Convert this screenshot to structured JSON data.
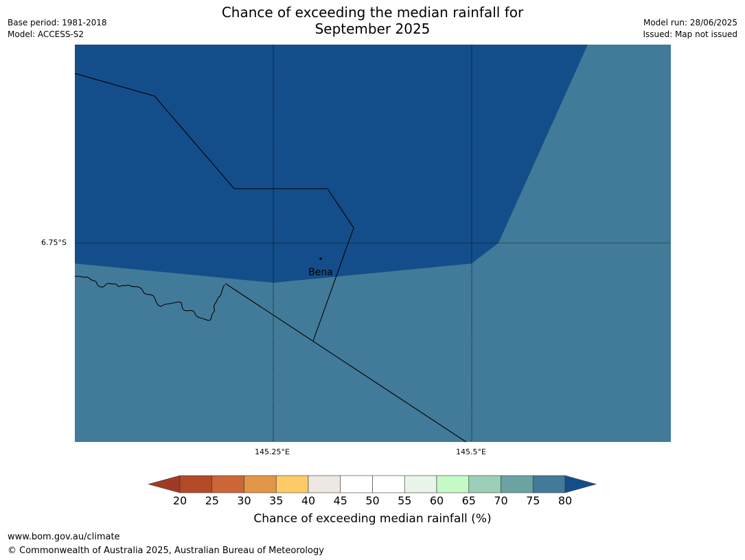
{
  "header": {
    "title_line1": "Chance of exceeding the median rainfall for",
    "title_line2": "September 2025",
    "base_period": "Base period: 1981-2018",
    "model": "Model: ACCESS-S2",
    "model_run": "Model run: 28/06/2025",
    "issued": "Issued: Map not issued"
  },
  "map": {
    "place_label": "Bena",
    "lat_label": "6.75°S",
    "lon_labels": [
      "145.25°E",
      "145.5°E"
    ],
    "region_colors": {
      "high": "#144e8a",
      "mid": "#427b99"
    }
  },
  "colorbar": {
    "ticks": [
      "20",
      "25",
      "30",
      "35",
      "40",
      "45",
      "50",
      "55",
      "60",
      "65",
      "70",
      "75",
      "80"
    ],
    "colors": [
      "#9f3b24",
      "#b34a28",
      "#cd6636",
      "#e39548",
      "#fdcb67",
      "#ede8e4",
      "#ffffff",
      "#ffffff",
      "#e8f5e8",
      "#c6fbc7",
      "#9bcfb7",
      "#6ba3a3",
      "#427b99",
      "#144e8a"
    ],
    "label": "Chance of exceeding median rainfall (%)"
  },
  "footer": {
    "url": "www.bom.gov.au/climate",
    "copyright": "© Commonwealth of Australia 2025, Australian Bureau of Meteorology"
  }
}
